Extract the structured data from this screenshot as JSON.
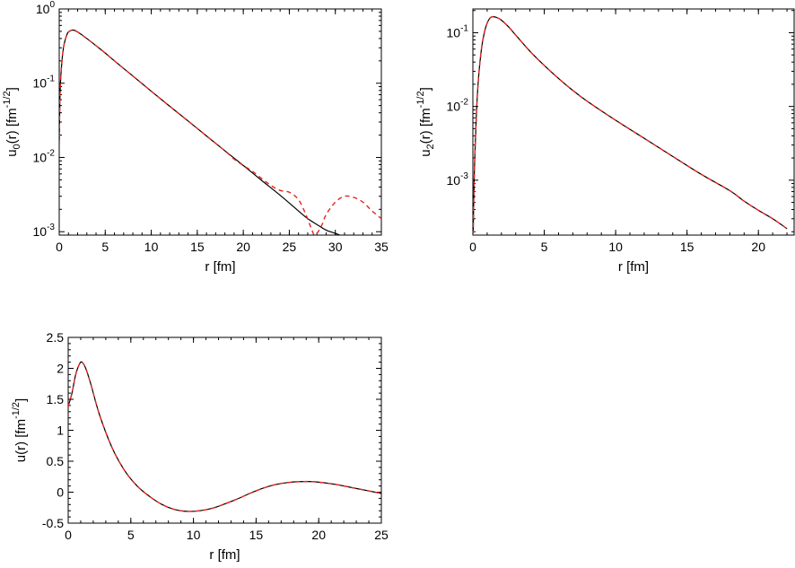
{
  "chart_data": [
    {
      "type": "line",
      "xlabel": "r [fm]",
      "ylabel": {
        "base": "u",
        "sub": "0",
        "mid": "(r) [fm",
        "sup": "-1/2",
        "end": "]"
      },
      "xlim": [
        0,
        35
      ],
      "ylim": [
        0.0009,
        1
      ],
      "yscale": "log",
      "xticks": [
        0,
        5,
        10,
        15,
        20,
        25,
        30,
        35
      ],
      "yticks": [
        {
          "value": 0.001,
          "base": "10",
          "exp": "-3"
        },
        {
          "value": 0.01,
          "base": "10",
          "exp": "-2"
        },
        {
          "value": 0.1,
          "base": "10",
          "exp": "-1"
        },
        {
          "value": 1,
          "base": "10",
          "exp": "0"
        }
      ],
      "series": [
        {
          "style": "solid",
          "color": "#000000",
          "x": [
            0,
            0.1,
            0.3,
            0.5,
            0.8,
            1.0,
            1.5,
            2,
            3,
            4,
            5,
            6,
            8,
            10,
            12,
            14,
            16,
            18,
            20,
            22,
            24,
            26,
            27,
            28,
            29,
            30,
            30.5
          ],
          "y": [
            0.015,
            0.08,
            0.2,
            0.32,
            0.44,
            0.49,
            0.52,
            0.49,
            0.4,
            0.32,
            0.255,
            0.2,
            0.125,
            0.078,
            0.049,
            0.031,
            0.0195,
            0.0123,
            0.0078,
            0.0049,
            0.0031,
            0.0019,
            0.0015,
            0.00125,
            0.00105,
            0.00095,
            0.0009
          ]
        },
        {
          "style": "dashed",
          "color": "#e8231c",
          "x": [
            0,
            0.1,
            0.3,
            0.5,
            0.8,
            1.0,
            1.5,
            2,
            3,
            4,
            5,
            6,
            8,
            10,
            12,
            14,
            16,
            18,
            19,
            20,
            21,
            22,
            23,
            24,
            25,
            26,
            26.8,
            27.4,
            27.8,
            28.5,
            29,
            30,
            31,
            32,
            33,
            34,
            35
          ],
          "y": [
            0.015,
            0.08,
            0.2,
            0.32,
            0.44,
            0.49,
            0.52,
            0.49,
            0.4,
            0.32,
            0.255,
            0.2,
            0.125,
            0.078,
            0.049,
            0.031,
            0.0195,
            0.0123,
            0.0095,
            0.0078,
            0.0065,
            0.0052,
            0.0042,
            0.0036,
            0.0034,
            0.0027,
            0.0017,
            0.0011,
            0.0009,
            0.0012,
            0.0017,
            0.0025,
            0.003,
            0.0029,
            0.0025,
            0.0019,
            0.0015
          ]
        }
      ]
    },
    {
      "type": "line",
      "xlabel": "r [fm]",
      "ylabel": {
        "base": "u",
        "sub": "2",
        "mid": "(r) [fm",
        "sup": "-1/2",
        "end": "]"
      },
      "xlim": [
        0,
        22.5
      ],
      "ylim": [
        0.00018,
        0.21
      ],
      "yscale": "log",
      "xticks": [
        0,
        5,
        10,
        15,
        20
      ],
      "yticks": [
        {
          "value": 0.001,
          "base": "10",
          "exp": "-3"
        },
        {
          "value": 0.01,
          "base": "10",
          "exp": "-2"
        },
        {
          "value": 0.1,
          "base": "10",
          "exp": "-1"
        }
      ],
      "series": [
        {
          "style": "solid",
          "color": "#000000",
          "x": [
            0.02,
            0.1,
            0.25,
            0.4,
            0.6,
            0.8,
            1.0,
            1.2,
            1.4,
            1.7,
            2,
            2.5,
            3,
            4,
            5,
            6,
            7,
            8,
            10,
            12,
            14,
            16,
            18,
            19,
            20,
            21,
            22
          ],
          "y": [
            0.00018,
            0.0012,
            0.008,
            0.025,
            0.06,
            0.1,
            0.135,
            0.158,
            0.165,
            0.16,
            0.148,
            0.12,
            0.093,
            0.056,
            0.036,
            0.024,
            0.0165,
            0.0118,
            0.0065,
            0.0037,
            0.0021,
            0.0012,
            0.00072,
            0.00052,
            0.00039,
            0.0003,
            0.00022
          ]
        },
        {
          "style": "dashed",
          "color": "#e8231c",
          "x": [
            0.02,
            0.1,
            0.25,
            0.4,
            0.6,
            0.8,
            1.0,
            1.2,
            1.4,
            1.7,
            2,
            2.5,
            3,
            4,
            5,
            6,
            7,
            8,
            10,
            12,
            14,
            16,
            18,
            19,
            20,
            21,
            22
          ],
          "y": [
            0.00018,
            0.0012,
            0.008,
            0.025,
            0.06,
            0.1,
            0.135,
            0.158,
            0.165,
            0.16,
            0.148,
            0.12,
            0.093,
            0.056,
            0.036,
            0.024,
            0.0165,
            0.0118,
            0.0065,
            0.0037,
            0.0021,
            0.0012,
            0.00072,
            0.00052,
            0.00039,
            0.0003,
            0.00022
          ]
        }
      ]
    },
    {
      "type": "line",
      "xlabel": "r [fm]",
      "ylabel": {
        "base": "u",
        "sub": "",
        "mid": "(r) [fm",
        "sup": "-1/2",
        "end": "]"
      },
      "xlim": [
        0,
        25
      ],
      "ylim": [
        -0.5,
        2.5
      ],
      "yscale": "linear",
      "xticks": [
        0,
        5,
        10,
        15,
        20,
        25
      ],
      "yticks": [
        {
          "value": -0.5,
          "label": "-0.5"
        },
        {
          "value": 0,
          "label": "0"
        },
        {
          "value": 0.5,
          "label": "0.5"
        },
        {
          "value": 1,
          "label": "1"
        },
        {
          "value": 1.5,
          "label": "1.5"
        },
        {
          "value": 2,
          "label": "2"
        },
        {
          "value": 2.5,
          "label": "2.5"
        }
      ],
      "series": [
        {
          "style": "solid",
          "color": "#000000",
          "x": [
            0,
            0.3,
            0.6,
            0.9,
            1.1,
            1.4,
            1.8,
            2.5,
            3.5,
            4.5,
            5.5,
            6.5,
            7.5,
            8.5,
            9.5,
            10.5,
            11.5,
            12.5,
            13.5,
            14.5,
            15.5,
            16.5,
            17.5,
            18.5,
            19.5,
            20.5,
            21.5,
            22.5,
            23.5,
            24.5,
            25
          ],
          "y": [
            1.38,
            1.6,
            1.9,
            2.07,
            2.1,
            2.0,
            1.75,
            1.25,
            0.72,
            0.35,
            0.1,
            -0.07,
            -0.2,
            -0.28,
            -0.31,
            -0.3,
            -0.26,
            -0.19,
            -0.11,
            -0.02,
            0.06,
            0.12,
            0.155,
            0.17,
            0.17,
            0.15,
            0.12,
            0.08,
            0.04,
            0.0,
            -0.02
          ]
        },
        {
          "style": "dashed",
          "color": "#e8231c",
          "x": [
            0,
            0.3,
            0.6,
            0.9,
            1.1,
            1.4,
            1.8,
            2.5,
            3.5,
            4.5,
            5.5,
            6.5,
            7.5,
            8.5,
            9.5,
            10.5,
            11.5,
            12.5,
            13.5,
            14.5,
            15.5,
            16.5,
            17.5,
            18.5,
            19.5,
            20.5,
            21.5,
            22.5,
            23.5,
            24.5,
            25
          ],
          "y": [
            1.38,
            1.6,
            1.9,
            2.07,
            2.1,
            2.0,
            1.75,
            1.25,
            0.72,
            0.35,
            0.1,
            -0.07,
            -0.2,
            -0.28,
            -0.31,
            -0.3,
            -0.26,
            -0.19,
            -0.11,
            -0.02,
            0.06,
            0.12,
            0.155,
            0.17,
            0.17,
            0.15,
            0.12,
            0.08,
            0.04,
            0.0,
            -0.02
          ]
        }
      ]
    }
  ]
}
